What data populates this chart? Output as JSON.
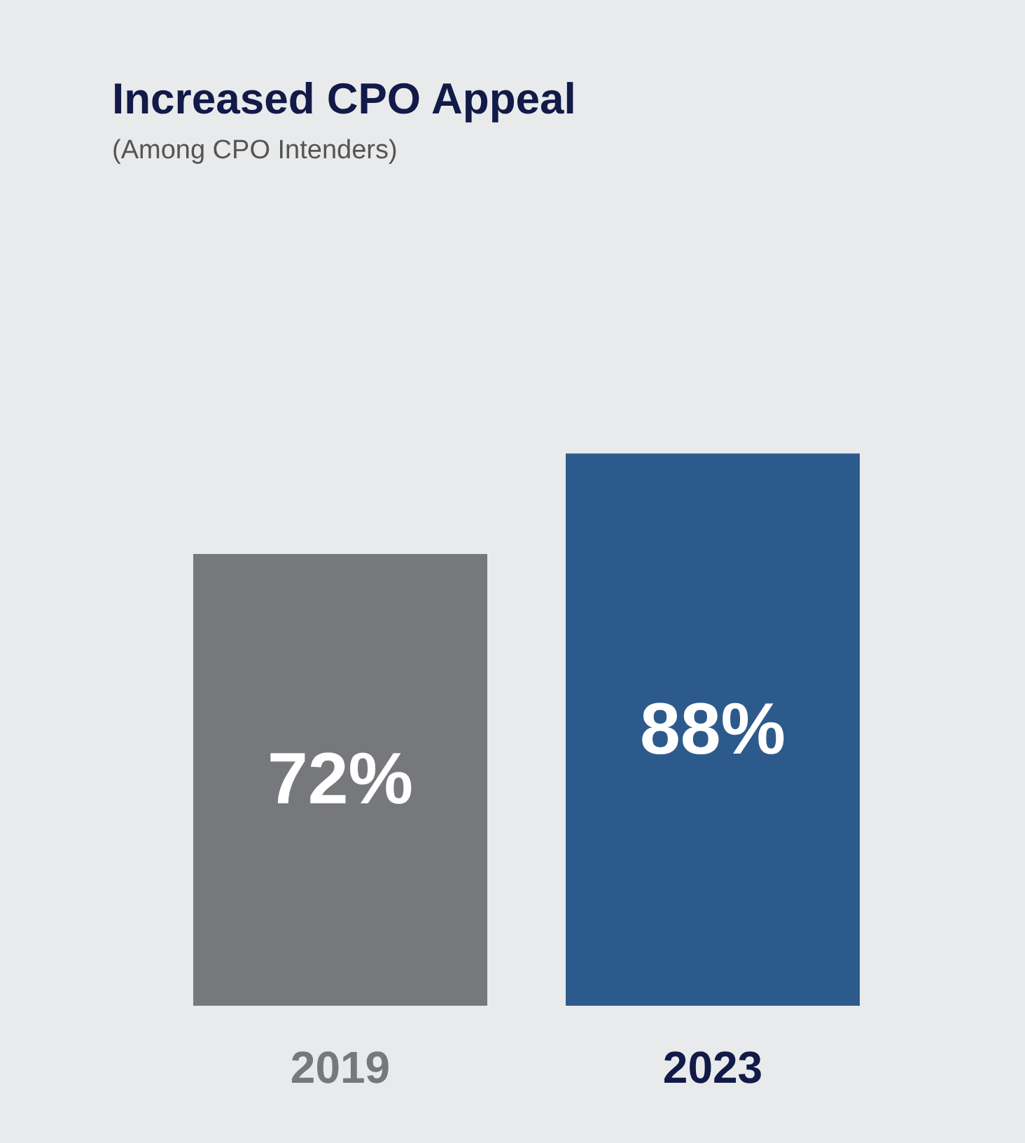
{
  "chart_data": {
    "type": "bar",
    "title": "Increased CPO Appeal",
    "subtitle": "(Among CPO Intenders)",
    "categories": [
      "2019",
      "2023"
    ],
    "values": [
      72,
      88
    ],
    "colors": [
      "#77787b",
      "#2d5a8c"
    ],
    "value_labels": [
      "72%",
      "88%"
    ]
  }
}
